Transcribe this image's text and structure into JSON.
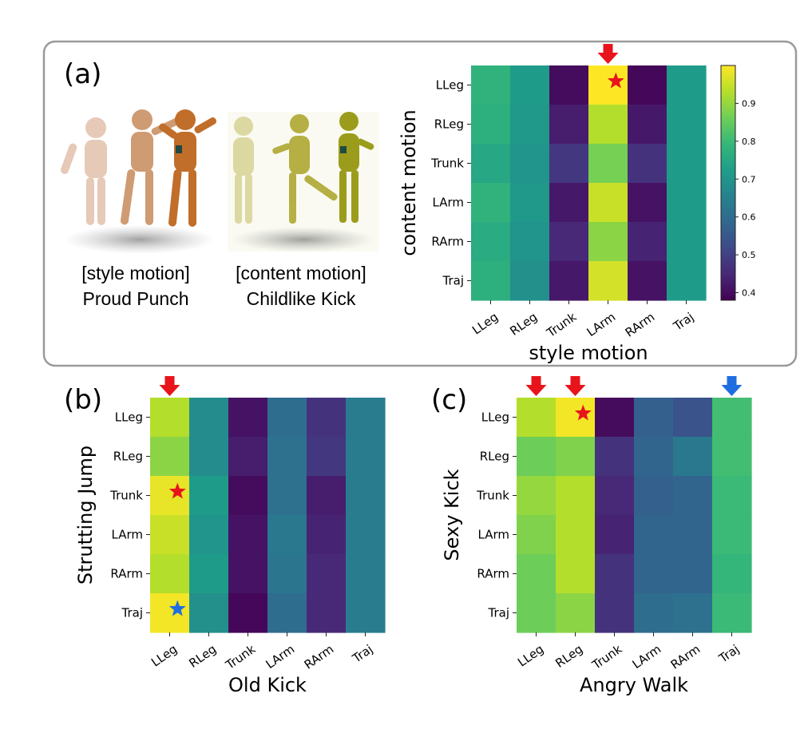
{
  "panels": {
    "a": {
      "label": "(a)"
    },
    "b": {
      "label": "(b)"
    },
    "c": {
      "label": "(c)"
    }
  },
  "captions": {
    "style_line1": "[style motion]",
    "style_line2": "Proud Punch",
    "content_line1": "[content motion]",
    "content_line2": "Childlike Kick"
  },
  "illustrations": {
    "style_figure": "orange-mannequin-punch-sequence",
    "content_figure": "yellow-mannequin-kick-sequence"
  },
  "colors": {
    "viridis": [
      "#440154",
      "#482878",
      "#3e4989",
      "#31688e",
      "#26828e",
      "#1f9e89",
      "#35b779",
      "#6ece58",
      "#b5de2b",
      "#fde725"
    ],
    "arrow_red": "#e8141c",
    "arrow_blue": "#1f6ee0",
    "star_red": "#e8141c",
    "star_blue": "#1f6ee0",
    "frame": "#9a9a9a"
  },
  "chart_data": [
    {
      "id": "a",
      "type": "heatmap",
      "title": "",
      "xlabel": "style motion",
      "ylabel": "content motion",
      "x_categories": [
        "LLeg",
        "RLeg",
        "Trunk",
        "LArm",
        "RArm",
        "Traj"
      ],
      "y_categories": [
        "LLeg",
        "RLeg",
        "Trunk",
        "LArm",
        "RArm",
        "Traj"
      ],
      "values": [
        [
          0.78,
          0.72,
          0.4,
          1.0,
          0.39,
          0.72
        ],
        [
          0.77,
          0.71,
          0.43,
          0.93,
          0.42,
          0.72
        ],
        [
          0.75,
          0.7,
          0.48,
          0.87,
          0.47,
          0.72
        ],
        [
          0.78,
          0.71,
          0.42,
          0.95,
          0.41,
          0.72
        ],
        [
          0.76,
          0.7,
          0.45,
          0.89,
          0.44,
          0.72
        ],
        [
          0.77,
          0.69,
          0.42,
          0.96,
          0.41,
          0.72
        ]
      ],
      "vmin": 0.38,
      "vmax": 1.0,
      "colorbar": {
        "ticks": [
          0.4,
          0.5,
          0.6,
          0.7,
          0.8,
          0.9
        ]
      },
      "arrows": [
        {
          "column": 3,
          "color": "red"
        }
      ],
      "stars": [
        {
          "row": 0,
          "column": 3,
          "color": "red"
        }
      ]
    },
    {
      "id": "b",
      "type": "heatmap",
      "title": "",
      "xlabel": "Old Kick",
      "ylabel": "Strutting Jump",
      "x_categories": [
        "LLeg",
        "RLeg",
        "Trunk",
        "LArm",
        "RArm",
        "Traj"
      ],
      "y_categories": [
        "LLeg",
        "RLeg",
        "Trunk",
        "LArm",
        "RArm",
        "Traj"
      ],
      "values": [
        [
          0.93,
          0.68,
          0.41,
          0.6,
          0.47,
          0.64
        ],
        [
          0.89,
          0.68,
          0.43,
          0.61,
          0.48,
          0.64
        ],
        [
          0.98,
          0.72,
          0.4,
          0.61,
          0.43,
          0.64
        ],
        [
          0.95,
          0.7,
          0.41,
          0.63,
          0.44,
          0.64
        ],
        [
          0.93,
          0.72,
          0.41,
          0.62,
          0.45,
          0.64
        ],
        [
          0.99,
          0.69,
          0.39,
          0.6,
          0.45,
          0.64
        ]
      ],
      "vmin": 0.38,
      "vmax": 1.0,
      "arrows": [
        {
          "column": 0,
          "color": "red"
        }
      ],
      "stars": [
        {
          "row": 2,
          "column": 0,
          "color": "red"
        },
        {
          "row": 5,
          "column": 0,
          "color": "blue"
        }
      ]
    },
    {
      "id": "c",
      "type": "heatmap",
      "title": "",
      "xlabel": "Angry Walk",
      "ylabel": "Sexy Kick",
      "x_categories": [
        "LLeg",
        "RLeg",
        "Trunk",
        "LArm",
        "RArm",
        "Traj"
      ],
      "y_categories": [
        "LLeg",
        "RLeg",
        "Trunk",
        "LArm",
        "RArm",
        "Traj"
      ],
      "values": [
        [
          0.93,
          0.99,
          0.4,
          0.57,
          0.54,
          0.81
        ],
        [
          0.86,
          0.88,
          0.47,
          0.58,
          0.63,
          0.81
        ],
        [
          0.9,
          0.93,
          0.45,
          0.57,
          0.58,
          0.8
        ],
        [
          0.88,
          0.93,
          0.44,
          0.58,
          0.58,
          0.8
        ],
        [
          0.86,
          0.93,
          0.47,
          0.58,
          0.58,
          0.79
        ],
        [
          0.86,
          0.89,
          0.47,
          0.6,
          0.61,
          0.8
        ]
      ],
      "vmin": 0.38,
      "vmax": 1.0,
      "arrows": [
        {
          "column": 0,
          "color": "red"
        },
        {
          "column": 1,
          "color": "red"
        },
        {
          "column": 5,
          "color": "blue"
        }
      ],
      "stars": [
        {
          "row": 0,
          "column": 1,
          "color": "red"
        }
      ]
    }
  ]
}
